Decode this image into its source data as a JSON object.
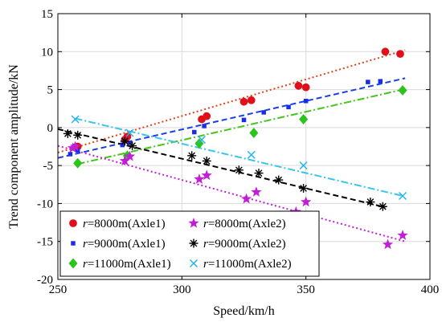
{
  "chart_data": {
    "type": "scatter",
    "xlabel": "Speed/km/h",
    "ylabel": "Trend component amplitude/kN",
    "xlim": [
      250,
      400
    ],
    "ylim": [
      -20,
      15
    ],
    "xticks": [
      "250",
      "300",
      "350",
      "400"
    ],
    "yticks": [
      "15",
      "10",
      "5",
      "0",
      "-5",
      "-10",
      "-15",
      "-20"
    ],
    "grid": true,
    "legend_position": "bottom-left",
    "series": [
      {
        "name_prefix": "r",
        "name_suffix": "=8000m(Axle1)",
        "marker": "circle",
        "color": "#e0101a",
        "fit_color": "#e0411a",
        "fit_style": "dotted",
        "x": [
          257,
          258,
          277,
          278,
          308,
          310,
          325,
          328,
          347,
          350,
          382,
          388
        ],
        "y": [
          -2.6,
          -2.5,
          -1.6,
          -1.2,
          1.1,
          1.5,
          3.4,
          3.6,
          5.5,
          5.3,
          10.0,
          9.7
        ],
        "fit": [
          [
            250,
            -3.3
          ],
          [
            390,
            10.2
          ]
        ]
      },
      {
        "name_prefix": "r",
        "name_suffix": "=9000m(Axle1)",
        "marker": "square",
        "color": "#1a2de6",
        "fit_color": "#1a3fe6",
        "fit_style": "dashed",
        "x": [
          255,
          258,
          276,
          279,
          305,
          309,
          325,
          333,
          343,
          350,
          375,
          380
        ],
        "y": [
          -3.5,
          -3.0,
          -2.3,
          -2.0,
          -0.6,
          0.2,
          1.0,
          2.0,
          2.7,
          3.5,
          6.0,
          6.1
        ],
        "fit": [
          [
            250,
            -4.0
          ],
          [
            390,
            6.5
          ]
        ]
      },
      {
        "name_prefix": "r",
        "name_suffix": "=11000m(Axle1)",
        "marker": "diamond",
        "color": "#2ac41a",
        "fit_color": "#45c41a",
        "fit_style": "dashdot",
        "x": [
          258,
          278,
          307,
          329,
          349,
          389
        ],
        "y": [
          -4.7,
          -3.7,
          -2.1,
          -0.7,
          1.1,
          4.9
        ],
        "fit": [
          [
            258,
            -4.8
          ],
          [
            389,
            5.0
          ]
        ]
      },
      {
        "name_prefix": "r",
        "name_suffix": "=8000m(Axle2)",
        "marker": "star",
        "color": "#c21ed6",
        "fit_color": "#c21ed6",
        "fit_style": "dotted",
        "x": [
          256,
          257,
          277,
          279,
          307,
          310,
          326,
          330,
          346,
          350,
          383,
          389
        ],
        "y": [
          -2.7,
          -2.5,
          -4.4,
          -3.8,
          -6.8,
          -6.3,
          -9.4,
          -8.5,
          -11.1,
          -9.8,
          -15.4,
          -14.2
        ],
        "fit": [
          [
            250,
            -2.4
          ],
          [
            390,
            -15.0
          ]
        ]
      },
      {
        "name_prefix": "r",
        "name_suffix": "=9000m(Axle2)",
        "marker": "asterisk",
        "color": "#000000",
        "fit_color": "#000000",
        "fit_style": "dashed",
        "x": [
          254,
          258,
          277,
          280,
          304,
          310,
          323,
          331,
          339,
          349,
          376,
          381
        ],
        "y": [
          -0.8,
          -1.0,
          -1.8,
          -2.4,
          -3.7,
          -4.4,
          -5.6,
          -6.0,
          -6.9,
          -8.0,
          -9.8,
          -10.4
        ],
        "fit": [
          [
            250,
            -0.2
          ],
          [
            382,
            -10.5
          ]
        ]
      },
      {
        "name_prefix": "r",
        "name_suffix": "=11000m(Axle2)",
        "marker": "x",
        "color": "#1ab4ee",
        "fit_color": "#3ac4ee",
        "fit_style": "dashdot",
        "x": [
          257,
          279,
          308,
          328,
          349,
          389
        ],
        "y": [
          1.1,
          -0.7,
          -1.6,
          -3.6,
          -5.0,
          -9.0
        ],
        "fit": [
          [
            257,
            1.2
          ],
          [
            389,
            -9.0
          ]
        ]
      }
    ]
  }
}
